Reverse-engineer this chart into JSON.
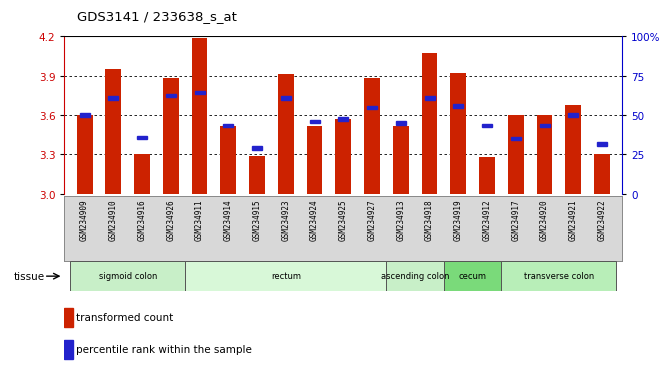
{
  "title": "GDS3141 / 233638_s_at",
  "samples": [
    "GSM234909",
    "GSM234910",
    "GSM234916",
    "GSM234926",
    "GSM234911",
    "GSM234914",
    "GSM234915",
    "GSM234923",
    "GSM234924",
    "GSM234925",
    "GSM234927",
    "GSM234913",
    "GSM234918",
    "GSM234919",
    "GSM234912",
    "GSM234917",
    "GSM234920",
    "GSM234921",
    "GSM234922"
  ],
  "bar_values": [
    3.6,
    3.95,
    3.3,
    3.88,
    4.19,
    3.52,
    3.29,
    3.91,
    3.52,
    3.57,
    3.88,
    3.52,
    4.07,
    3.92,
    3.28,
    3.6,
    3.6,
    3.68,
    3.3
  ],
  "blue_values": [
    3.6,
    3.73,
    3.43,
    3.75,
    3.77,
    3.52,
    3.35,
    3.73,
    3.55,
    3.57,
    3.66,
    3.54,
    3.73,
    3.67,
    3.52,
    3.42,
    3.52,
    3.6,
    3.38
  ],
  "ylim_left": [
    3.0,
    4.2
  ],
  "ylim_right": [
    0,
    100
  ],
  "yticks_left": [
    3.0,
    3.3,
    3.6,
    3.9,
    4.2
  ],
  "yticks_right": [
    0,
    25,
    50,
    75,
    100
  ],
  "ytick_labels_right": [
    "0",
    "25",
    "50",
    "75",
    "100%"
  ],
  "grid_lines": [
    3.3,
    3.6,
    3.9
  ],
  "tissue_groups": [
    {
      "label": "sigmoid colon",
      "start": 0,
      "end": 4,
      "color": "#c8efc8"
    },
    {
      "label": "rectum",
      "start": 4,
      "end": 11,
      "color": "#d8f8d8"
    },
    {
      "label": "ascending colon",
      "start": 11,
      "end": 13,
      "color": "#c8efc8"
    },
    {
      "label": "cecum",
      "start": 13,
      "end": 15,
      "color": "#7ada7a"
    },
    {
      "label": "transverse colon",
      "start": 15,
      "end": 19,
      "color": "#b8eeb8"
    }
  ],
  "bar_color": "#cc2200",
  "blue_color": "#2222cc",
  "bar_width": 0.55,
  "bg_color": "#ffffff",
  "tick_color_left": "#cc0000",
  "tick_color_right": "#0000cc",
  "sample_box_color": "#d8d8d8"
}
